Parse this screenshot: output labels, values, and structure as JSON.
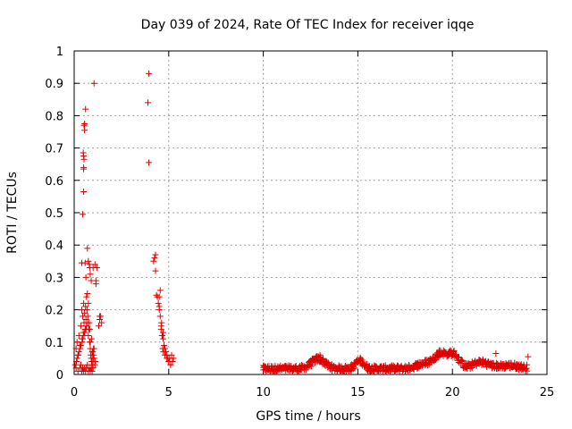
{
  "chart_data": {
    "type": "scatter",
    "title": "Day 039 of 2024, Rate Of TEC Index for receiver iqqe",
    "xlabel": "GPS time / hours",
    "ylabel": "ROTI / TECUs",
    "xlim": [
      0,
      25
    ],
    "ylim": [
      0,
      1
    ],
    "xticks": [
      0,
      5,
      10,
      15,
      20,
      25
    ],
    "yticks": [
      0,
      0.1,
      0.2,
      0.3,
      0.4,
      0.5,
      0.6,
      0.7,
      0.8,
      0.9,
      1
    ],
    "ytick_labels": [
      "0",
      "0.1",
      "0.2",
      "0.3",
      "0.4",
      "0.5",
      "0.6",
      "0.7",
      "0.8",
      "0.9",
      "1"
    ],
    "xtick_labels": [
      "0",
      "5",
      "10",
      "15",
      "20",
      "25"
    ],
    "grid": true,
    "marker": "+",
    "color": "#e00000",
    "series": [
      {
        "x": [
          0.05,
          0.1,
          0.15,
          0.2,
          0.25,
          0.3,
          0.35,
          0.4,
          0.42,
          0.45,
          0.48,
          0.5,
          0.52,
          0.55,
          0.58,
          0.6,
          0.62,
          0.65,
          0.68,
          0.7,
          0.72,
          0.75,
          0.78,
          0.8,
          0.82,
          0.85,
          0.88,
          0.9,
          0.92,
          0.95,
          0.98,
          1.0,
          1.02,
          1.05,
          1.1,
          1.15,
          1.2,
          1.3,
          1.35,
          0.1,
          0.2,
          0.3,
          0.35,
          0.4,
          0.45,
          0.5,
          0.55,
          0.6,
          0.65,
          0.7,
          0.75,
          0.8,
          0.85,
          0.9,
          0.95,
          1.0,
          0.15,
          0.25,
          0.35,
          0.45,
          0.55,
          0.65,
          0.75,
          0.85,
          0.95,
          1.05,
          1.12,
          0.12,
          0.22,
          0.32,
          0.42,
          0.52,
          0.62,
          0.72,
          0.82,
          0.92,
          0.4,
          0.45,
          0.5,
          0.5,
          0.5,
          0.52,
          0.5,
          0.48,
          0.55,
          0.52,
          0.55,
          0.6,
          0.58,
          0.62,
          0.7,
          0.75,
          0.8,
          0.82,
          0.85,
          0.9,
          1.05,
          1.1,
          1.15,
          1.35,
          1.4,
          1.45,
          1.0,
          0.98,
          1.02,
          3.9,
          3.95,
          3.95,
          4.2,
          4.25,
          4.3,
          4.3,
          4.35,
          4.4,
          4.45,
          4.5,
          4.5,
          4.55,
          4.6,
          4.6,
          4.62,
          4.65,
          4.7,
          4.7,
          4.75,
          4.8,
          4.85,
          4.9,
          4.95,
          5.0,
          5.05,
          5.1,
          5.15,
          5.2,
          5.25,
          4.68,
          4.72,
          4.8,
          4.9,
          5.0,
          5.1,
          4.55,
          4.5,
          4.65
        ],
        "y": [
          0.03,
          0.08,
          0.1,
          0.06,
          0.12,
          0.09,
          0.15,
          0.2,
          0.11,
          0.18,
          0.13,
          0.22,
          0.16,
          0.19,
          0.14,
          0.21,
          0.17,
          0.24,
          0.2,
          0.25,
          0.18,
          0.22,
          0.14,
          0.16,
          0.1,
          0.08,
          0.06,
          0.05,
          0.04,
          0.03,
          0.05,
          0.04,
          0.06,
          0.08,
          0.03,
          0.28,
          0.33,
          0.15,
          0.18,
          0.02,
          0.01,
          0.02,
          0.03,
          0.01,
          0.02,
          0.01,
          0.02,
          0.01,
          0.02,
          0.03,
          0.01,
          0.02,
          0.01,
          0.02,
          0.01,
          0.02,
          0.05,
          0.07,
          0.09,
          0.11,
          0.13,
          0.15,
          0.12,
          0.1,
          0.07,
          0.05,
          0.04,
          0.04,
          0.06,
          0.08,
          0.1,
          0.12,
          0.14,
          0.16,
          0.14,
          0.11,
          0.345,
          0.495,
          0.565,
          0.635,
          0.64,
          0.665,
          0.675,
          0.685,
          0.755,
          0.77,
          0.775,
          0.82,
          0.345,
          0.3,
          0.39,
          0.35,
          0.34,
          0.33,
          0.31,
          0.29,
          0.9,
          0.34,
          0.29,
          0.17,
          0.18,
          0.16,
          0.33,
          0.07,
          0.08,
          0.84,
          0.93,
          0.655,
          0.35,
          0.36,
          0.32,
          0.37,
          0.245,
          0.24,
          0.22,
          0.2,
          0.21,
          0.18,
          0.15,
          0.14,
          0.16,
          0.12,
          0.13,
          0.11,
          0.09,
          0.08,
          0.07,
          0.06,
          0.05,
          0.04,
          0.05,
          0.03,
          0.06,
          0.04,
          0.05,
          0.08,
          0.07,
          0.06,
          0.05,
          0.04,
          0.03,
          0.26,
          0.24,
          0.12
        ]
      }
    ],
    "dense_band": {
      "start_hour": 10.0,
      "end_hour": 24.0,
      "step_hours": 0.07,
      "baseline": 0.018,
      "bumps": [
        {
          "center": 12.9,
          "width": 0.5,
          "height": 0.03
        },
        {
          "center": 15.1,
          "width": 0.3,
          "height": 0.025
        },
        {
          "center": 18.5,
          "width": 0.6,
          "height": 0.015
        },
        {
          "center": 19.4,
          "width": 0.5,
          "height": 0.045
        },
        {
          "center": 20.1,
          "width": 0.4,
          "height": 0.04
        },
        {
          "center": 21.5,
          "width": 0.6,
          "height": 0.02
        },
        {
          "center": 23.0,
          "width": 0.8,
          "height": 0.01
        }
      ],
      "outliers": [
        {
          "x": 22.3,
          "y": 0.065
        },
        {
          "x": 24.0,
          "y": 0.055
        },
        {
          "x": 13.0,
          "y": 0.06
        },
        {
          "x": 19.3,
          "y": 0.075
        }
      ]
    }
  }
}
